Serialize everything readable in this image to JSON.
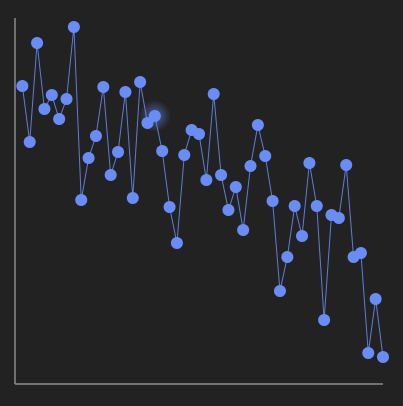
{
  "chart_data": {
    "type": "line",
    "x": [
      0,
      1,
      2,
      3,
      4,
      5,
      6,
      7,
      8,
      9,
      10,
      11,
      12,
      13,
      14,
      15,
      16,
      17,
      18,
      19,
      20,
      21,
      22,
      23,
      24,
      25,
      26,
      27,
      28,
      29,
      30,
      31,
      32,
      33,
      34,
      35,
      36,
      37,
      38,
      39,
      40,
      41,
      42,
      43,
      44,
      45,
      46,
      47,
      48,
      49
    ],
    "series": [
      {
        "color": "#6a8cf7",
        "values": [
          298,
          242,
          341,
          275,
          289,
          265,
          285,
          357,
          184,
          226,
          248,
          297,
          209,
          232,
          292,
          186,
          302,
          261,
          268,
          233,
          177,
          141,
          229,
          254,
          250,
          204,
          290,
          209,
          174,
          197,
          154,
          218,
          259,
          228,
          183,
          93,
          127,
          178,
          148,
          221,
          178,
          64,
          169,
          166,
          219,
          127,
          131,
          31,
          85,
          27
        ]
      }
    ],
    "xlim": [
      -1,
      49
    ],
    "ylim": [
      0,
      366
    ],
    "highlight": 18
  }
}
